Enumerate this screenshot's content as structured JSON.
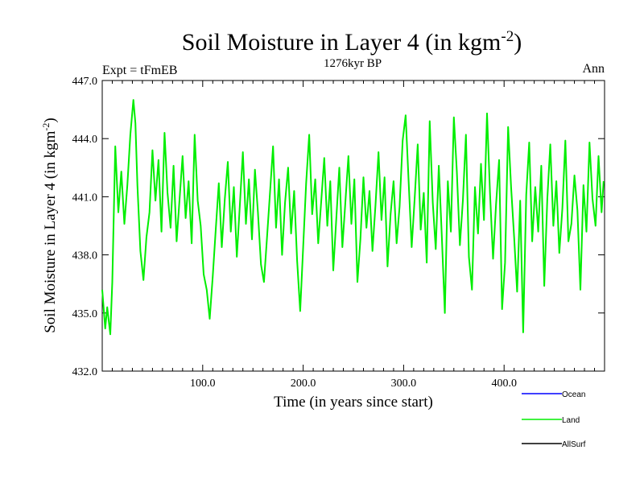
{
  "chart_data": {
    "type": "line",
    "title": "Soil Moisture in Layer 4 (in kgm",
    "title_sup": "-2",
    "title_close": ")",
    "subtitle": "1276kyr BP",
    "left_label": "Expt = tFmEB",
    "right_label": "Ann",
    "xlabel": "Time (in years since start)",
    "ylabel": "Soil Moisture in Layer 4 (in kgm",
    "ylabel_sup": "-2",
    "ylabel_close": ")",
    "xlim": [
      0,
      500
    ],
    "ylim": [
      432.0,
      447.0
    ],
    "x_ticks": [
      {
        "value": 100,
        "label": "100.0"
      },
      {
        "value": 200,
        "label": "200.0"
      },
      {
        "value": 300,
        "label": "300.0"
      },
      {
        "value": 400,
        "label": "400.0"
      }
    ],
    "y_ticks": [
      {
        "value": 432.0,
        "label": "432.0"
      },
      {
        "value": 435.0,
        "label": "435.0"
      },
      {
        "value": 438.0,
        "label": "438.0"
      },
      {
        "value": 441.0,
        "label": "441.0"
      },
      {
        "value": 444.0,
        "label": "444.0"
      },
      {
        "value": 447.0,
        "label": "447.0"
      }
    ],
    "legend_position": "bottom-right",
    "series": [
      {
        "name": "Land",
        "color": "#00ee00",
        "x": [
          0,
          3,
          5,
          8,
          10,
          13,
          16,
          19,
          22,
          25,
          28,
          31,
          33,
          35,
          38,
          41,
          44,
          47,
          50,
          53,
          56,
          59,
          62,
          65,
          68,
          71,
          74,
          77,
          80,
          83,
          86,
          89,
          92,
          95,
          98,
          101,
          104,
          107,
          110,
          113,
          116,
          119,
          122,
          125,
          128,
          131,
          134,
          137,
          140,
          143,
          146,
          149,
          152,
          155,
          158,
          161,
          164,
          167,
          170,
          173,
          176,
          179,
          182,
          185,
          188,
          191,
          194,
          197,
          200,
          203,
          206,
          209,
          212,
          215,
          218,
          221,
          224,
          227,
          230,
          233,
          236,
          239,
          242,
          245,
          248,
          251,
          254,
          257,
          260,
          263,
          266,
          269,
          272,
          275,
          278,
          281,
          284,
          287,
          290,
          293,
          296,
          299,
          302,
          305,
          308,
          311,
          314,
          317,
          320,
          323,
          326,
          329,
          332,
          335,
          338,
          341,
          344,
          347,
          350,
          353,
          356,
          359,
          362,
          365,
          368,
          371,
          374,
          377,
          380,
          383,
          386,
          389,
          392,
          395,
          398,
          401,
          404,
          407,
          410,
          413,
          416,
          419,
          422,
          425,
          428,
          431,
          434,
          437,
          440,
          443,
          446,
          449,
          452,
          455,
          458,
          461,
          464,
          467,
          470,
          473,
          476,
          479,
          482,
          485,
          488,
          491,
          494,
          497,
          499
        ],
        "values": [
          436.2,
          434.2,
          435.3,
          433.9,
          436.6,
          443.6,
          440.2,
          442.3,
          439.6,
          441.6,
          444.2,
          446.0,
          444.8,
          441.6,
          438.2,
          436.7,
          438.9,
          440.2,
          443.4,
          440.8,
          442.9,
          439.2,
          444.3,
          441.2,
          439.4,
          442.6,
          438.7,
          440.9,
          443.1,
          439.9,
          441.8,
          438.6,
          444.2,
          440.8,
          439.5,
          437.0,
          436.2,
          434.7,
          436.9,
          439.3,
          441.7,
          438.4,
          440.9,
          442.8,
          439.2,
          441.5,
          437.9,
          440.6,
          443.3,
          439.6,
          441.9,
          438.8,
          442.4,
          440.2,
          437.5,
          436.6,
          438.9,
          441.2,
          443.6,
          439.4,
          441.9,
          438.0,
          440.7,
          442.5,
          439.1,
          441.3,
          437.7,
          435.1,
          438.4,
          441.7,
          444.2,
          440.1,
          441.9,
          438.6,
          440.8,
          443.0,
          439.5,
          441.8,
          437.2,
          439.9,
          442.5,
          438.4,
          440.7,
          443.1,
          439.6,
          441.9,
          436.6,
          438.8,
          442.0,
          439.4,
          441.3,
          438.2,
          440.6,
          443.3,
          439.8,
          442.0,
          437.4,
          440.1,
          441.8,
          438.6,
          440.5,
          443.9,
          445.2,
          441.8,
          438.4,
          440.9,
          443.7,
          439.3,
          441.2,
          437.6,
          444.9,
          440.7,
          438.3,
          442.6,
          439.0,
          435.0,
          441.8,
          439.2,
          445.1,
          442.3,
          438.5,
          440.8,
          444.2,
          437.9,
          436.2,
          441.5,
          439.1,
          442.7,
          439.8,
          445.3,
          441.2,
          437.8,
          440.6,
          442.9,
          435.2,
          437.6,
          444.6,
          441.5,
          438.9,
          436.1,
          440.8,
          434.0,
          441.1,
          443.8,
          438.7,
          441.5,
          439.2,
          442.6,
          436.4,
          440.9,
          443.7,
          439.5,
          441.8,
          438.1,
          440.4,
          443.9,
          438.7,
          439.6,
          442.1,
          440.3,
          436.2,
          441.6,
          439.2,
          443.8,
          440.9,
          439.5,
          443.1,
          440.2,
          441.8
        ]
      }
    ],
    "legend": [
      {
        "name": "Ocean",
        "color": "#0000ff"
      },
      {
        "name": "Land",
        "color": "#00ee00"
      },
      {
        "name": "AllSurf",
        "color": "#000000"
      }
    ]
  }
}
